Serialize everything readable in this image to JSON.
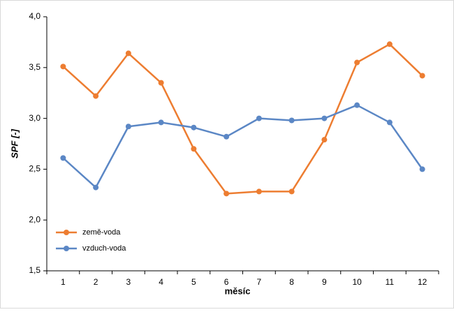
{
  "chart_data": {
    "type": "line",
    "x_label": "měsíc",
    "y_label": "SPF [-]",
    "categories": [
      "1",
      "2",
      "3",
      "4",
      "5",
      "6",
      "7",
      "8",
      "9",
      "10",
      "11",
      "12"
    ],
    "series": [
      {
        "name": "země-voda",
        "color": "#ed7d31",
        "values": [
          3.51,
          3.22,
          3.64,
          3.35,
          2.7,
          2.26,
          2.28,
          2.28,
          2.79,
          3.55,
          3.73,
          3.42
        ]
      },
      {
        "name": "vzduch-voda",
        "color": "#5b87c5",
        "values": [
          2.61,
          2.32,
          2.92,
          2.96,
          2.91,
          2.82,
          3.0,
          2.98,
          3.0,
          3.13,
          2.96,
          2.5
        ]
      }
    ],
    "ylim": [
      1.5,
      4.0
    ],
    "yticks": [
      {
        "value": 1.5,
        "label": "1,5"
      },
      {
        "value": 2.0,
        "label": "2,0"
      },
      {
        "value": 2.5,
        "label": "2,5"
      },
      {
        "value": 3.0,
        "label": "3,0"
      },
      {
        "value": 3.5,
        "label": "3,5"
      },
      {
        "value": 4.0,
        "label": "4,0"
      }
    ],
    "grid": false,
    "legend": "lower left"
  }
}
